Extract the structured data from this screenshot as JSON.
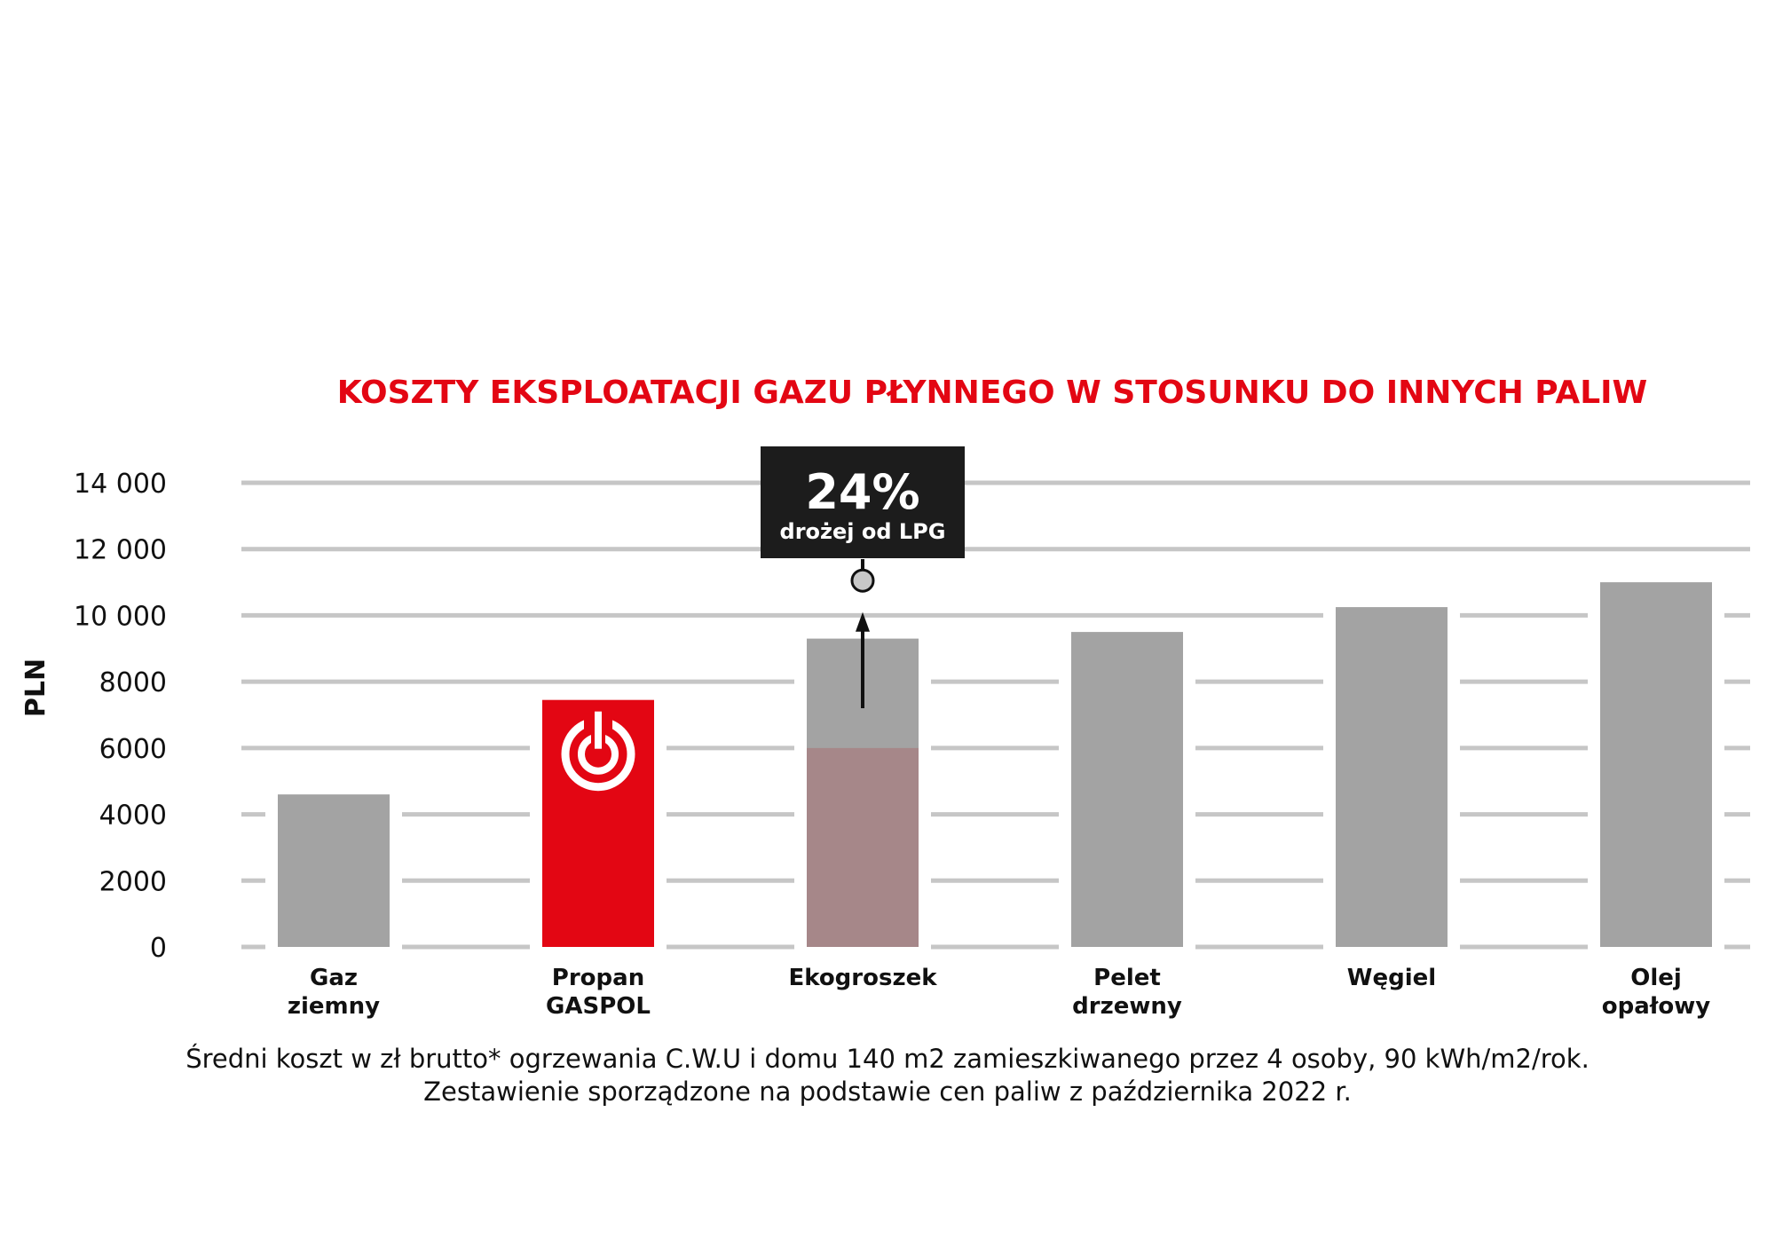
{
  "chart_data": {
    "type": "bar",
    "title": "KOSZTY EKSPLOATACJI GAZU PŁYNNEGO W STOSUNKU DO INNYCH PALIW",
    "ylabel": "PLN",
    "ylim": [
      0,
      14000
    ],
    "yticks": [
      "0",
      "2000",
      "4000",
      "6000",
      "8000",
      "10 000",
      "12 000",
      "14 000"
    ],
    "ytick_values": [
      0,
      2000,
      4000,
      6000,
      8000,
      10000,
      12000,
      14000
    ],
    "grid": true,
    "categories": [
      [
        "Gaz",
        "ziemny"
      ],
      [
        "Propan",
        "GASPOL"
      ],
      [
        "Ekogroszek"
      ],
      [
        "Pelet",
        "drzewny"
      ],
      [
        "Węgiel"
      ],
      [
        "Olej",
        "opałowy"
      ]
    ],
    "values": [
      4600,
      7450,
      9300,
      9500,
      10250,
      11000
    ],
    "overlay": {
      "category_index": 2,
      "lower_value": 6000,
      "arrow_from": 7200,
      "arrow_to": 10100,
      "marker_value": 11050,
      "callout_big": "24%",
      "callout_small": "drożej od LPG"
    },
    "colors": {
      "bar": "#a3a3a3",
      "highlight": "#e30613",
      "overlay": "#a68789",
      "grid": "#c6c6c6",
      "title": "#e30613",
      "callout_bg": "#1c1c1c"
    },
    "highlight_index": 1,
    "highlight_icon": "power-icon"
  },
  "footnote": {
    "line1": "Średni koszt w zł brutto* ogrzewania C.W.U i domu 140 m2 zamieszkiwanego przez 4 osoby, 90 kWh/m2/rok.",
    "line2": "Zestawienie sporządzone na podstawie cen paliw z października 2022 r."
  }
}
